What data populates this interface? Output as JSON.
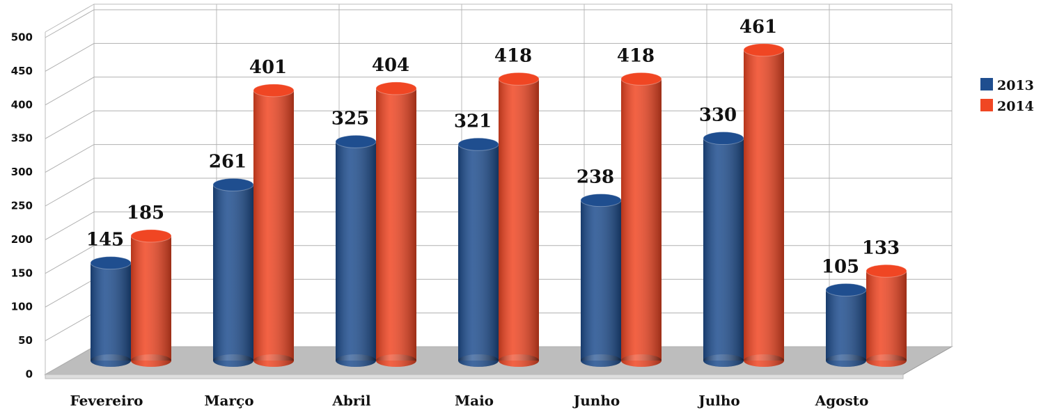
{
  "chart_data": {
    "type": "bar3d",
    "categories": [
      "Fevereiro",
      "Março",
      "Abril",
      "Maio",
      "Junho",
      "Julho",
      "Agosto"
    ],
    "series": [
      {
        "name": "2013",
        "color": "#1f4e8f",
        "values": [
          145,
          261,
          325,
          321,
          238,
          330,
          105
        ]
      },
      {
        "name": "2014",
        "color": "#f04623",
        "values": [
          185,
          401,
          404,
          418,
          418,
          461,
          133
        ]
      }
    ],
    "ylim": [
      0,
      500
    ],
    "yticks": [
      0,
      50,
      100,
      150,
      200,
      250,
      300,
      350,
      400,
      450,
      500
    ],
    "grid": true,
    "legend": "right"
  }
}
